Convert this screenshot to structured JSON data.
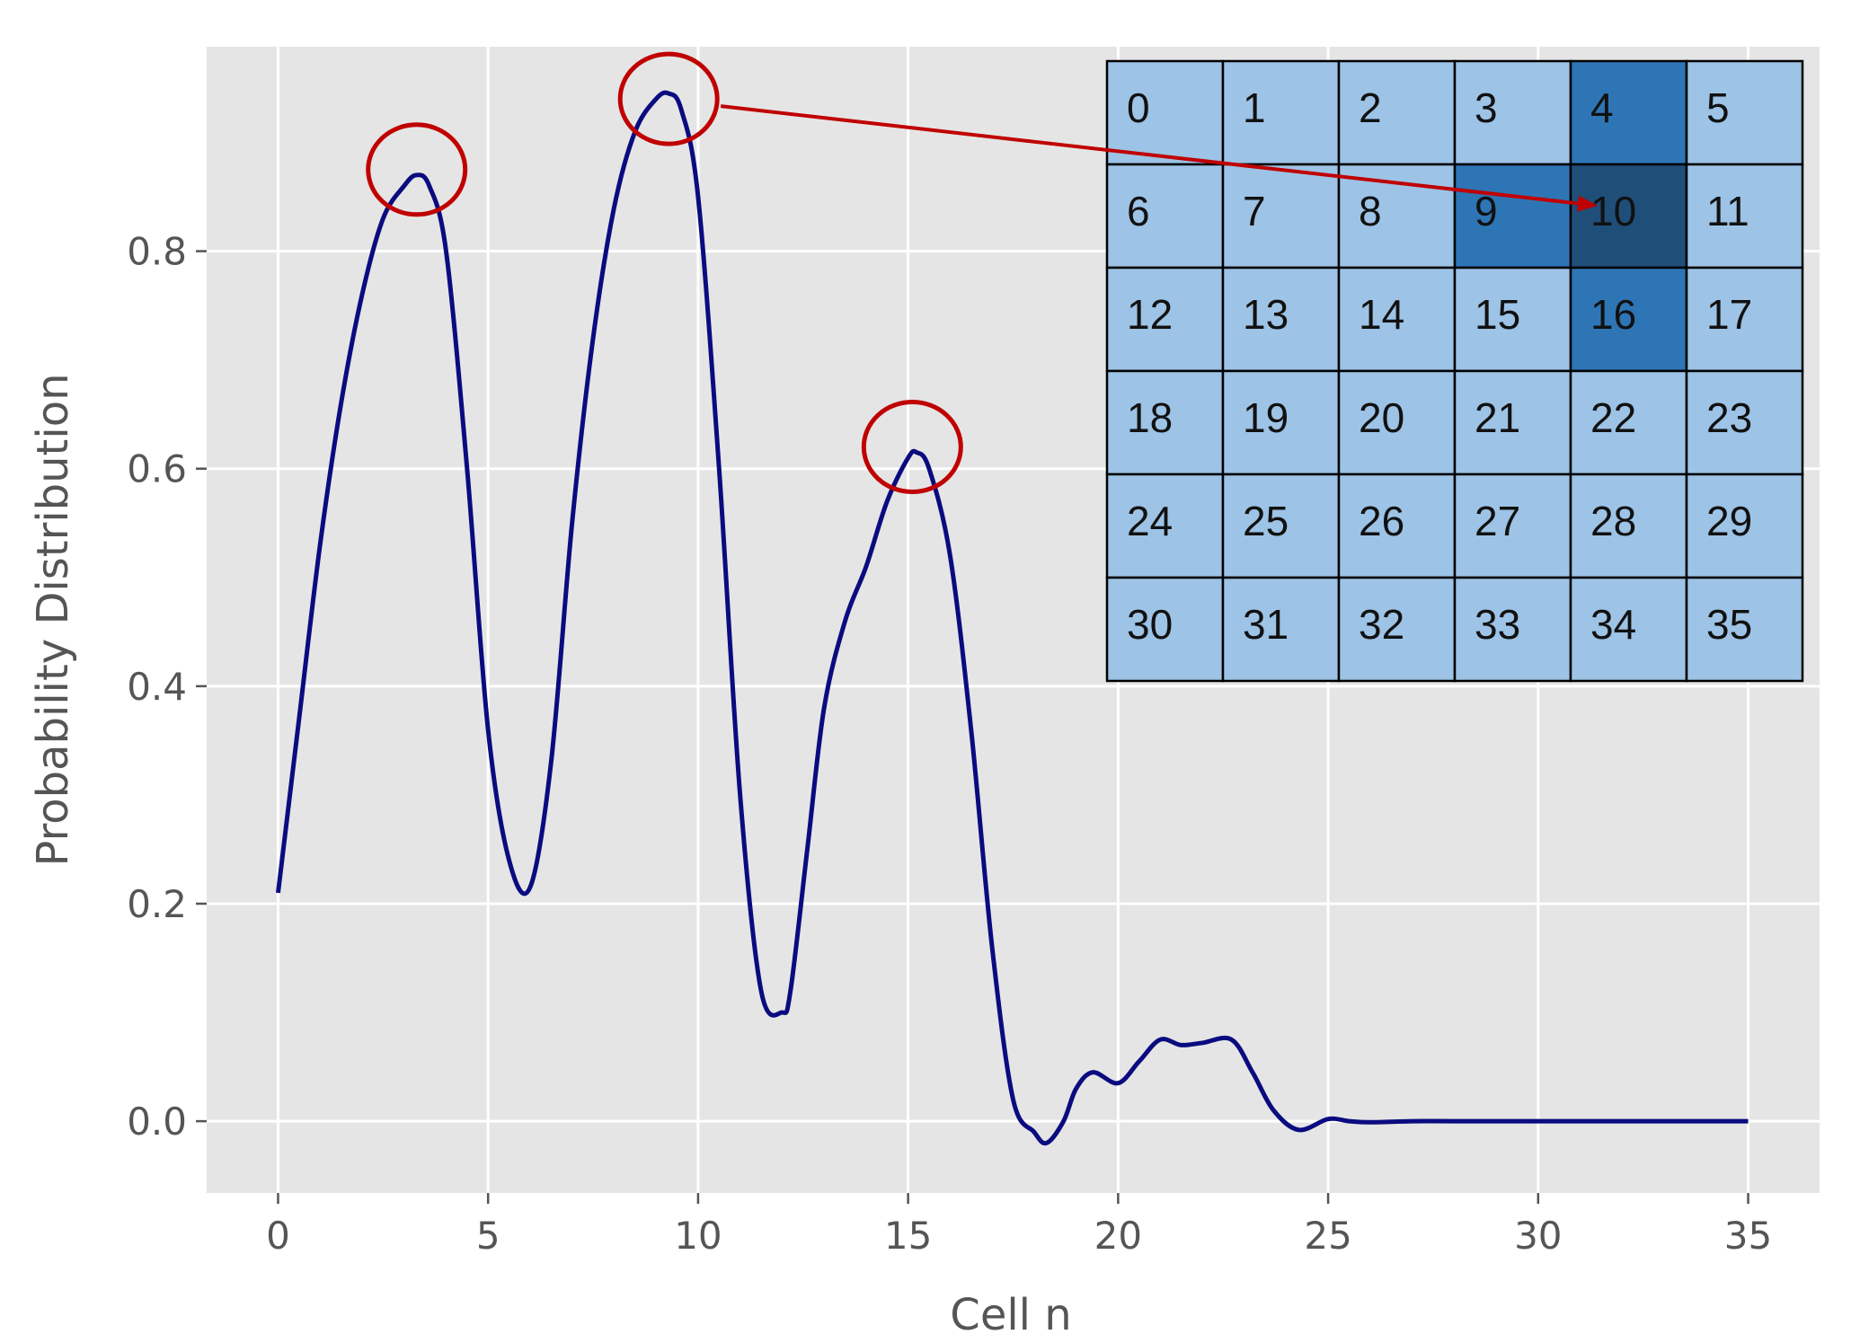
{
  "chart_data": {
    "type": "line",
    "xlabel": "Cell n",
    "ylabel": "Probability Distribution",
    "xlim": [
      -1.7,
      36.7
    ],
    "ylim": [
      -0.066,
      0.988
    ],
    "xticks": [
      "0",
      "5",
      "10",
      "15",
      "20",
      "25",
      "30",
      "35"
    ],
    "yticks": [
      "0.0",
      "0.2",
      "0.4",
      "0.6",
      "0.8"
    ],
    "grid": true,
    "series": [
      {
        "color": "#0b0b80",
        "x": [
          0,
          0.5,
          1,
          1.5,
          2,
          2.5,
          3,
          3.3,
          3.6,
          4,
          4.5,
          5,
          5.5,
          6,
          6.5,
          7,
          7.5,
          8,
          8.5,
          9,
          9.3,
          9.6,
          10,
          10.5,
          11,
          11.5,
          12,
          12.2,
          12.6,
          13,
          13.5,
          14,
          14.5,
          15,
          15.2,
          15.5,
          16,
          16.5,
          17,
          17.5,
          18,
          18.3,
          18.7,
          19,
          19.4,
          20,
          20.5,
          21,
          21.5,
          22,
          22.7,
          23.2,
          23.7,
          24.3,
          25,
          25.5,
          26,
          27,
          28,
          30,
          35
        ],
        "y": [
          0.21,
          0.37,
          0.53,
          0.66,
          0.76,
          0.83,
          0.86,
          0.87,
          0.86,
          0.8,
          0.6,
          0.36,
          0.24,
          0.215,
          0.33,
          0.55,
          0.72,
          0.84,
          0.91,
          0.94,
          0.945,
          0.93,
          0.85,
          0.6,
          0.3,
          0.12,
          0.1,
          0.12,
          0.25,
          0.38,
          0.46,
          0.51,
          0.57,
          0.61,
          0.615,
          0.6,
          0.52,
          0.36,
          0.16,
          0.02,
          -0.01,
          -0.02,
          0.0,
          0.03,
          0.045,
          0.035,
          0.055,
          0.075,
          0.07,
          0.072,
          0.075,
          0.045,
          0.01,
          -0.008,
          0.002,
          0.0,
          -0.001,
          0.0,
          0.0,
          0.0,
          0.0
        ]
      }
    ],
    "peak_markers": [
      {
        "x": 3.3,
        "y": 0.875
      },
      {
        "x": 9.3,
        "y": 0.94
      },
      {
        "x": 15.1,
        "y": 0.62
      }
    ],
    "grid_inset": {
      "rows": 6,
      "cols": 6,
      "labels": [
        "0",
        "1",
        "2",
        "3",
        "4",
        "5",
        "6",
        "7",
        "8",
        "9",
        "10",
        "11",
        "12",
        "13",
        "14",
        "15",
        "16",
        "17",
        "18",
        "19",
        "20",
        "21",
        "22",
        "23",
        "24",
        "25",
        "26",
        "27",
        "28",
        "29",
        "30",
        "31",
        "32",
        "33",
        "34",
        "35"
      ],
      "highlighted_medium": [
        4,
        9,
        16
      ],
      "highlighted_dark": [
        10
      ],
      "arrow_target": 10
    },
    "colors": {
      "background": "#e5e5e5",
      "grid": "#ffffff",
      "line": "#0b0b80",
      "marker": "#c00000",
      "cell_light": "#9dc3e6",
      "cell_medium": "#2e75b6",
      "cell_dark": "#1f4e79"
    }
  }
}
